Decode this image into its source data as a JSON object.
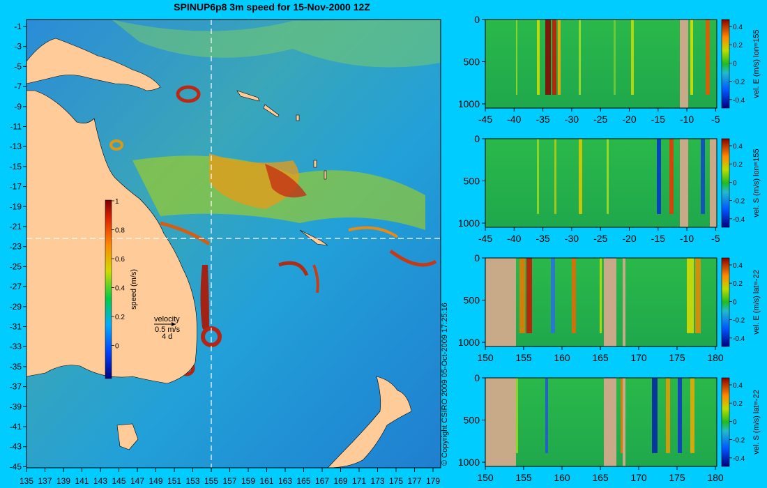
{
  "title": "SPINUP6p8 3m speed for 15-Nov-2000 12Z",
  "copyright": "© Copyright CSIRO 2009  05-Oct-2009 17:25:16",
  "map": {
    "lat_ticks": [
      "-1",
      "-3",
      "-5",
      "-7",
      "-9",
      "-11",
      "-13",
      "-15",
      "-17",
      "-19",
      "-21",
      "-23",
      "-25",
      "-27",
      "-29",
      "-31",
      "-33",
      "-35",
      "-37",
      "-39",
      "-41",
      "-43",
      "-45"
    ],
    "lon_ticks": [
      "135",
      "137",
      "139",
      "141",
      "143",
      "145",
      "147",
      "149",
      "151",
      "153",
      "155",
      "157",
      "159",
      "161",
      "163",
      "165",
      "167",
      "169",
      "171",
      "173",
      "175",
      "177",
      "179"
    ],
    "crosshair": {
      "lon": 155,
      "lat": -22
    },
    "colorbar": {
      "label": "speed (m/s)",
      "ticks": [
        "1",
        "0.8",
        "0.6",
        "0.4",
        "0.2",
        "0"
      ]
    },
    "velocity_key": {
      "title": "velocity",
      "speed": "0.5 m/s",
      "time": "4 d"
    }
  },
  "colors": {
    "background": "#00ccff",
    "land": "#ffcc99",
    "section_land": "#c8aa88"
  },
  "panels": [
    {
      "label": "vel. E (m/s) lon=155",
      "x_ticks": [
        "-45",
        "-40",
        "-35",
        "-30",
        "-25",
        "-20",
        "-15",
        "-10",
        "-5"
      ],
      "y_ticks": [
        "0",
        "500",
        "1000"
      ],
      "colorbar_ticks": [
        "0.4",
        "0.2",
        "0",
        "-0.2",
        "-0.4"
      ]
    },
    {
      "label": "vel. S (m/s) lon=155",
      "x_ticks": [
        "-45",
        "-40",
        "-35",
        "-30",
        "-25",
        "-20",
        "-15",
        "-10",
        "-5"
      ],
      "y_ticks": [
        "0",
        "500",
        "1000"
      ],
      "colorbar_ticks": [
        "0.4",
        "0.2",
        "0",
        "-0.2",
        "-0.4"
      ]
    },
    {
      "label": "vel. E (m/s) lat=-22",
      "x_ticks": [
        "150",
        "155",
        "160",
        "165",
        "170",
        "175",
        "180"
      ],
      "y_ticks": [
        "0",
        "500",
        "1000"
      ],
      "colorbar_ticks": [
        "0.4",
        "0.2",
        "0",
        "-0.2",
        "-0.4"
      ]
    },
    {
      "label": "vel. S (m/s) lat=-22",
      "x_ticks": [
        "150",
        "155",
        "160",
        "165",
        "170",
        "175",
        "180"
      ],
      "y_ticks": [
        "0",
        "500",
        "1000"
      ],
      "colorbar_ticks": [
        "0.4",
        "0.2",
        "0",
        "-0.2",
        "-0.4"
      ]
    }
  ]
}
